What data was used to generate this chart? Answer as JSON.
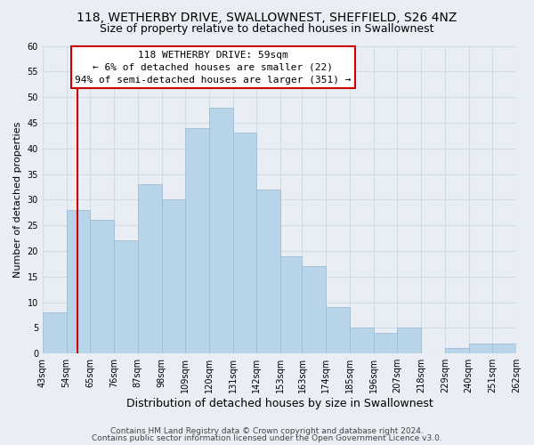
{
  "title": "118, WETHERBY DRIVE, SWALLOWNEST, SHEFFIELD, S26 4NZ",
  "subtitle": "Size of property relative to detached houses in Swallownest",
  "xlabel": "Distribution of detached houses by size in Swallownest",
  "ylabel": "Number of detached properties",
  "bin_edges": [
    43,
    54,
    65,
    76,
    87,
    98,
    109,
    120,
    131,
    142,
    153,
    163,
    174,
    185,
    196,
    207,
    218,
    229,
    240,
    251,
    262
  ],
  "counts": [
    8,
    28,
    26,
    22,
    33,
    30,
    44,
    48,
    43,
    32,
    19,
    17,
    9,
    5,
    4,
    5,
    0,
    1,
    2,
    2
  ],
  "bar_color": "#b8d4e8",
  "bar_edge_color": "#a0bcd4",
  "reference_line_x": 59,
  "reference_line_color": "#cc0000",
  "annotation_line1": "118 WETHERBY DRIVE: 59sqm",
  "annotation_line2": "← 6% of detached houses are smaller (22)",
  "annotation_line3": "94% of semi-detached houses are larger (351) →",
  "annotation_box_facecolor": "#ffffff",
  "annotation_box_edgecolor": "#cc0000",
  "ylim": [
    0,
    60
  ],
  "yticks": [
    0,
    5,
    10,
    15,
    20,
    25,
    30,
    35,
    40,
    45,
    50,
    55,
    60
  ],
  "grid_color": "#d0dce8",
  "background_color": "#e8eef4",
  "footer_line1": "Contains HM Land Registry data © Crown copyright and database right 2024.",
  "footer_line2": "Contains public sector information licensed under the Open Government Licence v3.0.",
  "title_fontsize": 10,
  "subtitle_fontsize": 9,
  "xlabel_fontsize": 9,
  "ylabel_fontsize": 8,
  "tick_fontsize": 7,
  "footer_fontsize": 6.5,
  "annotation_fontsize": 8
}
